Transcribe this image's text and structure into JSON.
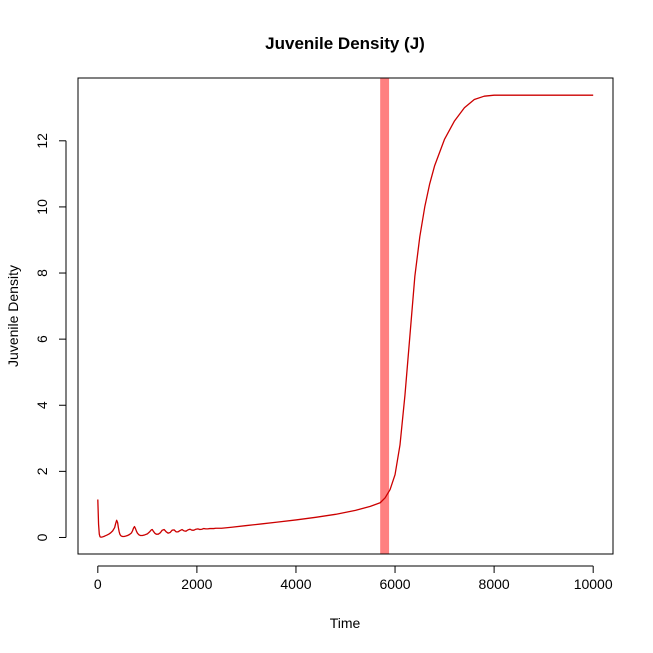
{
  "chart_data": {
    "type": "line",
    "title": "Juvenile Density (J)",
    "xlabel": "Time",
    "ylabel": "Juvenile Density",
    "xlim": [
      -400,
      10400
    ],
    "ylim": [
      -0.5,
      13.9
    ],
    "x_ticks": [
      0,
      2000,
      4000,
      6000,
      8000,
      10000
    ],
    "y_ticks": [
      0,
      2,
      4,
      6,
      8,
      10,
      12
    ],
    "grid": false,
    "legend": "none",
    "colors": {
      "line": "#cc0000",
      "band": "#ff8080"
    },
    "highlight_band": {
      "x": [
        5700,
        5880
      ]
    },
    "series": [
      {
        "x": [
          0,
          15,
          30,
          45,
          60,
          80,
          100,
          120,
          150,
          180,
          220,
          260,
          300,
          340,
          360,
          380,
          400,
          415,
          430,
          445,
          460,
          480,
          500,
          530,
          560,
          600,
          640,
          680,
          700,
          720,
          740,
          760,
          780,
          800,
          830,
          860,
          900,
          950,
          1000,
          1040,
          1080,
          1100,
          1120,
          1150,
          1180,
          1220,
          1260,
          1300,
          1340,
          1380,
          1420,
          1460,
          1500,
          1540,
          1580,
          1620,
          1660,
          1700,
          1740,
          1780,
          1820,
          1860,
          1900,
          1940,
          1980,
          2020,
          2060,
          2100,
          2140,
          2180,
          2220,
          2260,
          2300,
          2340,
          2380,
          2420,
          2460,
          2500,
          2700,
          3000,
          3300,
          3600,
          4000,
          4400,
          4800,
          5200,
          5500,
          5700,
          5800,
          5900,
          6000,
          6100,
          6200,
          6300,
          6400,
          6500,
          6600,
          6700,
          6800,
          7000,
          7200,
          7400,
          7600,
          7800,
          8000,
          8200,
          8400,
          8600,
          9000,
          9500,
          10000
        ],
        "values": [
          1.15,
          0.4,
          0.1,
          0.02,
          0.01,
          0.01,
          0.02,
          0.03,
          0.05,
          0.07,
          0.1,
          0.14,
          0.2,
          0.3,
          0.42,
          0.52,
          0.45,
          0.3,
          0.18,
          0.1,
          0.06,
          0.04,
          0.03,
          0.03,
          0.04,
          0.06,
          0.09,
          0.14,
          0.2,
          0.28,
          0.33,
          0.27,
          0.19,
          0.13,
          0.08,
          0.06,
          0.06,
          0.08,
          0.11,
          0.16,
          0.23,
          0.24,
          0.19,
          0.13,
          0.1,
          0.1,
          0.14,
          0.22,
          0.24,
          0.17,
          0.13,
          0.15,
          0.22,
          0.23,
          0.17,
          0.17,
          0.21,
          0.24,
          0.2,
          0.19,
          0.23,
          0.25,
          0.22,
          0.22,
          0.25,
          0.26,
          0.24,
          0.25,
          0.27,
          0.26,
          0.26,
          0.27,
          0.27,
          0.27,
          0.28,
          0.28,
          0.28,
          0.28,
          0.31,
          0.36,
          0.41,
          0.46,
          0.53,
          0.61,
          0.7,
          0.82,
          0.94,
          1.05,
          1.2,
          1.45,
          1.9,
          2.8,
          4.3,
          6.1,
          7.9,
          9.1,
          10.0,
          10.7,
          11.25,
          12.05,
          12.6,
          13.0,
          13.25,
          13.35,
          13.38,
          13.38,
          13.38,
          13.38,
          13.38,
          13.38,
          13.38
        ]
      }
    ]
  }
}
